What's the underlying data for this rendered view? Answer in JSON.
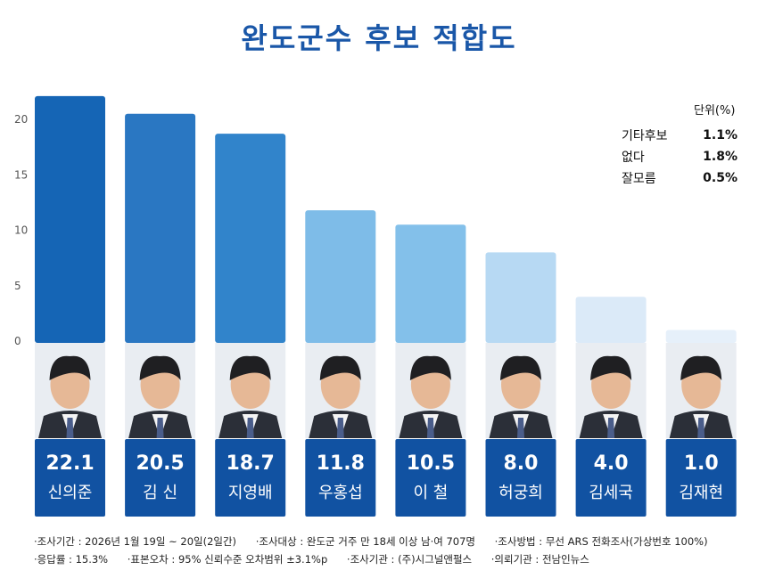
{
  "title": "완도군수 후보 적합도",
  "unit_label": "단위(%)",
  "others": [
    {
      "label": "기타후보",
      "value": "1.1%"
    },
    {
      "label": "없다",
      "value": "1.8%"
    },
    {
      "label": "잘모름",
      "value": "0.5%"
    }
  ],
  "chart_data": {
    "type": "bar",
    "title": "완도군수 후보 적합도",
    "xlabel": "",
    "ylabel": "",
    "ylim": [
      0,
      22.1
    ],
    "yticks": [
      0,
      5,
      10,
      15,
      20
    ],
    "categories": [
      "신의준",
      "김 신",
      "지영배",
      "우홍섭",
      "이 철",
      "허궁희",
      "김세국",
      "김재현"
    ],
    "values": [
      22.1,
      20.5,
      18.7,
      11.8,
      10.5,
      8.0,
      4.0,
      1.0
    ],
    "value_labels": [
      "22.1",
      "20.5",
      "18.7",
      "11.8",
      "10.5",
      "8.0",
      "4.0",
      "1.0"
    ],
    "bar_colors": [
      "#1565b5",
      "#2a77c2",
      "#3184cb",
      "#7ebce8",
      "#83c0ea",
      "#b7d9f3",
      "#dbeaf8",
      "#e6f0fa"
    ]
  },
  "colors": {
    "title": "#1a57a8",
    "label_box": "#1152a2",
    "axis_text": "#555555"
  },
  "footer": {
    "line1": [
      "·조사기간 : 2026년 1월 19일 ~ 20일(2일간)",
      "·조사대상 : 완도군 거주 만 18세 이상 남·여 707명",
      "·조사방법 : 무선 ARS 전화조사(가상번호 100%)"
    ],
    "line2": [
      "·응답률 : 15.3%",
      "·표본오차 : 95% 신뢰수준 오차범위 ±3.1%p",
      "·조사기관 : (주)시그널앤펄스",
      "·의뢰기관 : 전남인뉴스"
    ]
  }
}
